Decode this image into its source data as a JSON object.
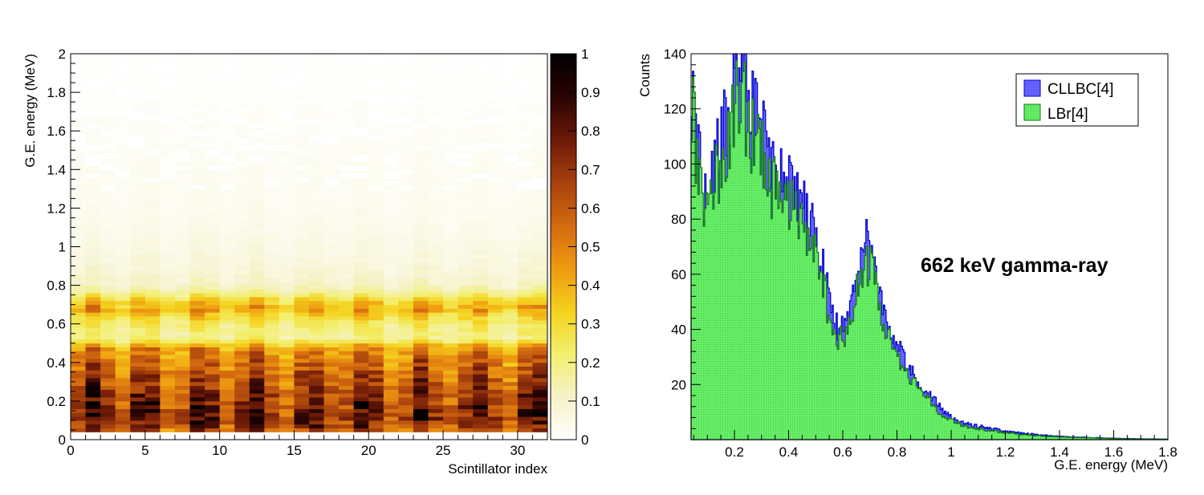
{
  "chart_data": [
    {
      "type": "heatmap",
      "xlabel": "Scintillator index",
      "ylabel": "G.E. energy (MeV)",
      "xlim": [
        0,
        32
      ],
      "ylim": [
        0,
        2
      ],
      "xticks": [
        "0",
        "5",
        "10",
        "15",
        "20",
        "25",
        "30"
      ],
      "yticks": [
        "0",
        "0.2",
        "0.4",
        "0.6",
        "0.8",
        "1",
        "1.2",
        "1.4",
        "1.6",
        "1.8",
        "2"
      ],
      "colorbar": {
        "range": [
          0,
          1
        ],
        "ticks": [
          "0",
          "0.1",
          "0.2",
          "0.3",
          "0.4",
          "0.5",
          "0.6",
          "0.7",
          "0.8",
          "0.9",
          "1"
        ],
        "colors": [
          "#ffffff",
          "#f5f2c8",
          "#f3ef6e",
          "#f4d21e",
          "#ee9a10",
          "#d46a10",
          "#a8420c",
          "#6e1a08",
          "#2a0402",
          "#000000"
        ]
      },
      "profile": {
        "energy_mev": [
          0.04,
          0.08,
          0.12,
          0.16,
          0.2,
          0.24,
          0.28,
          0.32,
          0.36,
          0.4,
          0.44,
          0.48,
          0.52,
          0.56,
          0.6,
          0.64,
          0.68,
          0.72,
          0.76,
          0.8,
          0.9,
          1.0,
          1.1,
          1.2,
          1.4,
          1.6,
          1.8,
          2.0
        ],
        "relative_intensity": [
          0.62,
          0.78,
          0.82,
          0.8,
          0.78,
          0.76,
          0.72,
          0.68,
          0.64,
          0.6,
          0.55,
          0.5,
          0.2,
          0.22,
          0.25,
          0.34,
          0.46,
          0.36,
          0.2,
          0.12,
          0.08,
          0.06,
          0.045,
          0.035,
          0.028,
          0.02,
          0.012,
          0.006
        ]
      }
    },
    {
      "type": "area",
      "xlabel": "G.E. energy (MeV)",
      "ylabel": "Counts",
      "xlim": [
        0.04,
        1.8
      ],
      "ylim": [
        0,
        140
      ],
      "xticks": [
        "0.2",
        "0.4",
        "0.6",
        "0.8",
        "1",
        "1.2",
        "1.4",
        "1.6",
        "1.8"
      ],
      "yticks": [
        "20",
        "40",
        "60",
        "80",
        "100",
        "120",
        "140"
      ],
      "annotation": "662 keV gamma-ray",
      "series": [
        {
          "name": "CLLBC[4]",
          "color": "#6666ff",
          "x": [
            0.04,
            0.06,
            0.08,
            0.1,
            0.12,
            0.14,
            0.16,
            0.18,
            0.2,
            0.22,
            0.24,
            0.26,
            0.28,
            0.3,
            0.32,
            0.34,
            0.36,
            0.38,
            0.4,
            0.42,
            0.44,
            0.46,
            0.48,
            0.5,
            0.52,
            0.54,
            0.56,
            0.58,
            0.6,
            0.62,
            0.64,
            0.66,
            0.68,
            0.7,
            0.72,
            0.74,
            0.76,
            0.78,
            0.8,
            0.82,
            0.84,
            0.86,
            0.88,
            0.9,
            0.92,
            0.94,
            0.96,
            0.98,
            1.0,
            1.05,
            1.1,
            1.15,
            1.2,
            1.25,
            1.3,
            1.35,
            1.4,
            1.5,
            1.6,
            1.7,
            1.8
          ],
          "values": [
            140,
            110,
            92,
            88,
            96,
            104,
            112,
            118,
            132,
            136,
            130,
            120,
            116,
            112,
            104,
            98,
            94,
            92,
            92,
            88,
            86,
            82,
            80,
            72,
            64,
            56,
            46,
            42,
            40,
            44,
            56,
            66,
            72,
            72,
            64,
            52,
            42,
            38,
            34,
            30,
            26,
            24,
            20,
            18,
            16,
            14,
            12,
            10,
            8,
            6,
            5,
            4,
            3,
            2.5,
            2,
            1.6,
            1.2,
            0.8,
            0.5,
            0.3,
            0.2
          ]
        },
        {
          "name": "LBr[4]",
          "color": "#66ee66",
          "x": [
            0.04,
            0.06,
            0.08,
            0.1,
            0.12,
            0.14,
            0.16,
            0.18,
            0.2,
            0.22,
            0.24,
            0.26,
            0.28,
            0.3,
            0.32,
            0.34,
            0.36,
            0.38,
            0.4,
            0.42,
            0.44,
            0.46,
            0.48,
            0.5,
            0.52,
            0.54,
            0.56,
            0.58,
            0.6,
            0.62,
            0.64,
            0.66,
            0.68,
            0.7,
            0.72,
            0.74,
            0.76,
            0.78,
            0.8,
            0.82,
            0.84,
            0.86,
            0.88,
            0.9,
            0.92,
            0.94,
            0.96,
            0.98,
            1.0,
            1.05,
            1.1,
            1.15,
            1.2,
            1.25,
            1.3,
            1.35,
            1.4,
            1.5,
            1.6,
            1.7,
            1.8
          ],
          "values": [
            130,
            100,
            86,
            84,
            90,
            98,
            104,
            110,
            122,
            126,
            120,
            112,
            108,
            104,
            98,
            92,
            88,
            86,
            86,
            82,
            80,
            76,
            74,
            66,
            58,
            50,
            42,
            38,
            36,
            40,
            50,
            58,
            64,
            64,
            56,
            46,
            38,
            34,
            30,
            27,
            23,
            21,
            18,
            16,
            14,
            12,
            10,
            8,
            7,
            5,
            4,
            3.2,
            2.5,
            2,
            1.6,
            1.2,
            1,
            0.7,
            0.4,
            0.25,
            0.15
          ]
        }
      ]
    }
  ]
}
